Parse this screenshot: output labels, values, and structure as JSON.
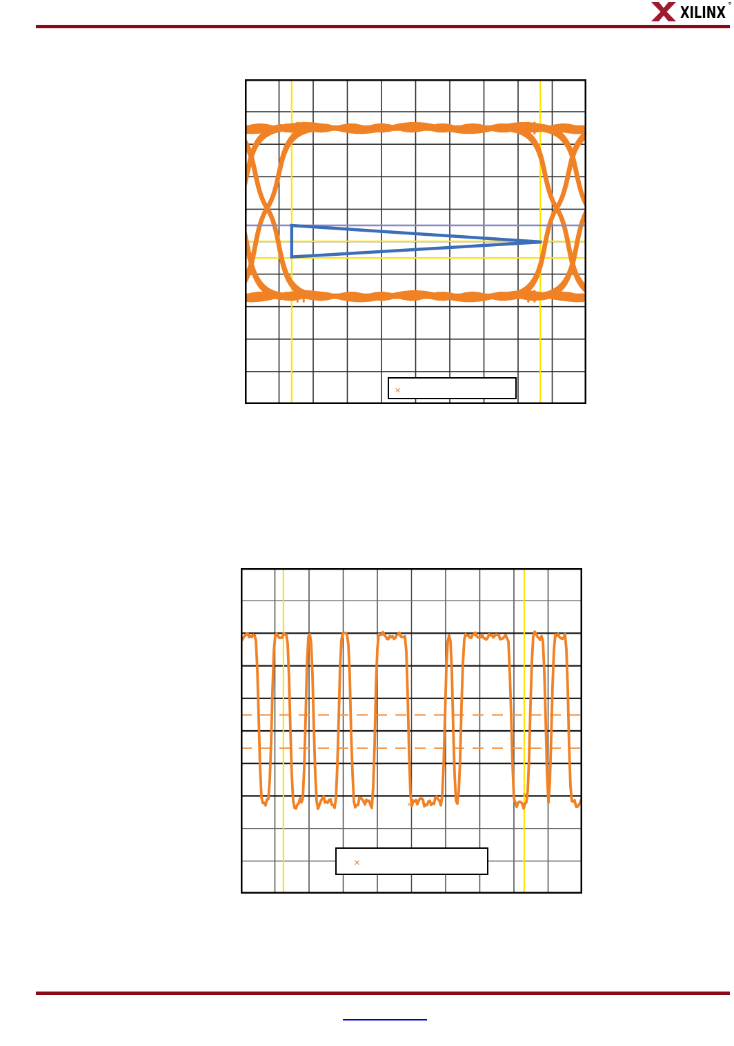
{
  "page": {
    "background": "#ffffff",
    "rule_color": "#8a0b15",
    "link_underline_color": "#0000cc"
  },
  "logo": {
    "text": "XILINX",
    "registered_mark": "°",
    "x_glyph_color": "#9e1b2f",
    "text_color": "#000000"
  },
  "footer": {
    "link_text": ""
  },
  "chart_data": [
    {
      "name": "eye-diagram",
      "type": "line",
      "description": "Oscilloscope eye diagram with mask triangle, reference line and cursors",
      "grid": {
        "cols": 10,
        "rows": 10
      },
      "colors": {
        "trace": "#f08125",
        "cursor": "#ffe400",
        "reference_line": "#8a8ac0",
        "mask": "#3d6db8",
        "grid": "#2e2e2e",
        "border": "#000000",
        "legend_fill": "#ffffff"
      },
      "eye": {
        "top_rail_y_div": 1.5,
        "bottom_rail_y_div": 6.68,
        "crossing_y_div": 3.97,
        "crossings_x_div": [
          0.65,
          9.13
        ],
        "tick_marks_x_div": [
          1.62,
          8.38
        ]
      },
      "cursors": {
        "vertical_x_div": [
          1.37,
          8.65
        ],
        "horizontal_y_div": [
          4.99,
          5.5
        ],
        "reference_y_div": 4.5
      },
      "mask_triangle_div": {
        "left_x": 1.37,
        "top_y": 4.5,
        "bottom_y": 5.47,
        "apex_x": 8.69,
        "apex_y": 5.01
      },
      "legend": {
        "marker": "✕",
        "label": ""
      }
    },
    {
      "name": "waveform",
      "type": "line",
      "description": "Oscilloscope digital data waveform with dashed threshold lines and cursors",
      "grid": {
        "cols": 10,
        "rows": 10
      },
      "colors": {
        "trace": "#f08125",
        "cursor": "#ffe400",
        "threshold": "#f5994d",
        "grid_major": "#161616",
        "grid_minor": "#6a6a6a",
        "border": "#000000",
        "legend_fill": "#ffffff"
      },
      "waveform": {
        "initial_state": "high",
        "high_y_div": 2.1,
        "low_y_div": 7.18,
        "transitions_x_div": [
          0.53,
          0.91,
          1.45,
          1.9,
          2.14,
          2.87,
          3.23,
          3.94,
          4.91,
          5.98,
          6.22,
          6.46,
          7.92,
          8.48,
          8.93,
          9.11,
          9.6
        ]
      },
      "cursors": {
        "vertical_x_div": [
          1.25,
          8.3
        ]
      },
      "thresholds_y_div": [
        4.51,
        5.53
      ],
      "trace_markers_div": [
        {
          "x": 4.95,
          "y": 7.27
        },
        {
          "x": 8.32,
          "y": 6.96
        }
      ],
      "legend": {
        "marker": "✕",
        "label": ""
      }
    }
  ]
}
